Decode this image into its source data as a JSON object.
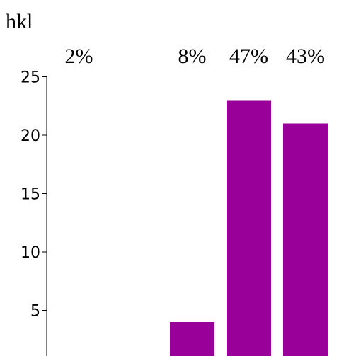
{
  "chart_data": {
    "type": "bar",
    "title": "hkl",
    "categories": [
      "",
      "",
      "",
      ""
    ],
    "values": [
      1,
      4,
      23,
      21
    ],
    "data_labels": [
      "2%",
      "8%",
      "47%",
      "43%"
    ],
    "ylim": [
      0,
      25
    ],
    "yticks": [
      5,
      10,
      15,
      20,
      25
    ],
    "bar_color": "#990099",
    "grid": false
  }
}
